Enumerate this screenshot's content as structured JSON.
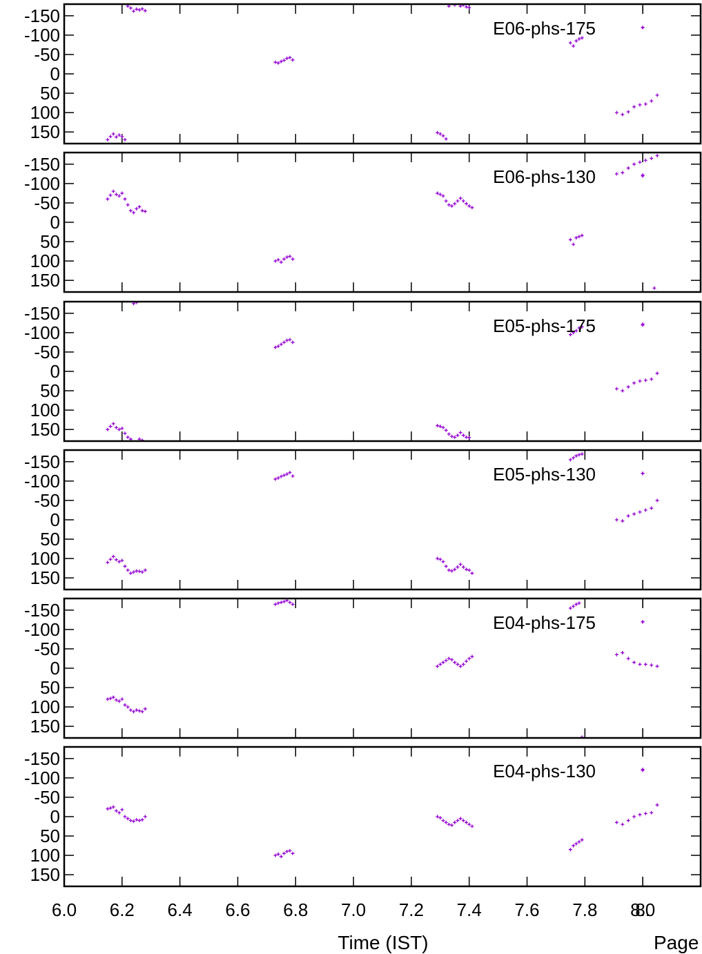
{
  "figure": {
    "xlabel": "Time (IST)",
    "footer": "Page",
    "series_color": "#9400d3",
    "x_ticks": [
      "6.0",
      "6.2",
      "6.4",
      "6.6",
      "6.8",
      "7.0",
      "7.2",
      "7.4",
      "7.6",
      "7.8",
      "8.0",
      "8."
    ],
    "y_ticks": [
      "-150",
      "-100",
      "-50",
      "0",
      "50",
      "100",
      "150"
    ]
  },
  "chart_data": [
    {
      "type": "scatter",
      "title": "E06-phs-175",
      "xlim": [
        6.0,
        8.2
      ],
      "ylim": [
        -180,
        180
      ],
      "y_inverted": true,
      "series": [
        {
          "name": "E06-phs-175",
          "x": [
            6.15,
            6.16,
            6.17,
            6.18,
            6.19,
            6.2,
            6.21,
            6.22,
            6.23,
            6.24,
            6.25,
            6.26,
            6.27,
            6.28,
            6.73,
            6.74,
            6.75,
            6.76,
            6.77,
            6.78,
            6.79,
            7.29,
            7.3,
            7.31,
            7.32,
            7.33,
            7.35,
            7.37,
            7.38,
            7.39,
            7.4,
            7.75,
            7.76,
            7.77,
            7.78,
            7.79,
            7.91,
            7.93,
            7.95,
            7.97,
            7.99,
            8.01,
            8.03,
            8.05,
            8.0
          ],
          "y": [
            170,
            162,
            155,
            163,
            158,
            162,
            170,
            -175,
            -170,
            -162,
            -167,
            -165,
            -168,
            -163,
            -30,
            -28,
            -32,
            -35,
            -40,
            -42,
            -36,
            152,
            155,
            160,
            168,
            -175,
            -178,
            -175,
            -178,
            -173,
            -171,
            -80,
            -72,
            -85,
            -90,
            -93,
            100,
            105,
            98,
            85,
            80,
            78,
            70,
            55,
            -120
          ]
        }
      ]
    },
    {
      "type": "scatter",
      "title": "E06-phs-130",
      "xlim": [
        6.0,
        8.2
      ],
      "ylim": [
        -180,
        180
      ],
      "y_inverted": true,
      "series": [
        {
          "name": "E06-phs-130",
          "x": [
            6.15,
            6.16,
            6.17,
            6.18,
            6.19,
            6.2,
            6.21,
            6.22,
            6.23,
            6.24,
            6.25,
            6.26,
            6.27,
            6.28,
            6.73,
            6.74,
            6.75,
            6.76,
            6.77,
            6.78,
            6.79,
            7.29,
            7.3,
            7.31,
            7.32,
            7.33,
            7.34,
            7.35,
            7.36,
            7.37,
            7.38,
            7.39,
            7.4,
            7.41,
            7.75,
            7.76,
            7.77,
            7.78,
            7.79,
            7.91,
            7.93,
            7.95,
            7.97,
            7.99,
            8.01,
            8.03,
            8.05,
            8.0,
            8.04
          ],
          "y": [
            -60,
            -70,
            -80,
            -72,
            -68,
            -75,
            -60,
            -45,
            -30,
            -25,
            -35,
            -40,
            -30,
            -28,
            100,
            97,
            103,
            95,
            90,
            88,
            95,
            -75,
            -72,
            -68,
            -55,
            -45,
            -42,
            -48,
            -55,
            -62,
            -55,
            -48,
            -42,
            -38,
            45,
            57,
            40,
            37,
            34,
            -125,
            -128,
            -140,
            -150,
            -155,
            -160,
            -165,
            -172,
            -122,
            170
          ]
        }
      ]
    },
    {
      "type": "scatter",
      "title": "E05-phs-175",
      "xlim": [
        6.0,
        8.2
      ],
      "ylim": [
        -180,
        180
      ],
      "y_inverted": true,
      "series": [
        {
          "name": "E05-phs-175",
          "x": [
            6.15,
            6.16,
            6.17,
            6.18,
            6.19,
            6.2,
            6.21,
            6.22,
            6.23,
            6.24,
            6.25,
            6.26,
            6.27,
            6.73,
            6.74,
            6.75,
            6.76,
            6.77,
            6.78,
            6.79,
            7.29,
            7.3,
            7.31,
            7.32,
            7.33,
            7.34,
            7.35,
            7.36,
            7.37,
            7.38,
            7.39,
            7.4,
            7.75,
            7.76,
            7.77,
            7.78,
            7.79,
            7.91,
            7.93,
            7.95,
            7.97,
            7.99,
            8.01,
            8.03,
            8.05,
            8.0
          ],
          "y": [
            150,
            142,
            135,
            145,
            150,
            147,
            160,
            170,
            175,
            -175,
            -178,
            175,
            178,
            -62,
            -65,
            -70,
            -75,
            -80,
            -82,
            -75,
            140,
            142,
            145,
            152,
            162,
            168,
            170,
            165,
            158,
            165,
            170,
            171,
            -95,
            -100,
            -105,
            -112,
            -115,
            45,
            50,
            40,
            30,
            25,
            23,
            20,
            5,
            -122
          ]
        }
      ]
    },
    {
      "type": "scatter",
      "title": "E05-phs-130",
      "xlim": [
        6.0,
        8.2
      ],
      "ylim": [
        -180,
        180
      ],
      "y_inverted": true,
      "series": [
        {
          "name": "E05-phs-130",
          "x": [
            6.15,
            6.16,
            6.17,
            6.18,
            6.19,
            6.2,
            6.21,
            6.22,
            6.23,
            6.24,
            6.25,
            6.26,
            6.27,
            6.28,
            6.73,
            6.74,
            6.75,
            6.76,
            6.77,
            6.78,
            6.79,
            7.29,
            7.3,
            7.31,
            7.32,
            7.33,
            7.34,
            7.35,
            7.36,
            7.37,
            7.38,
            7.39,
            7.4,
            7.41,
            7.75,
            7.76,
            7.77,
            7.78,
            7.79,
            7.91,
            7.93,
            7.95,
            7.97,
            7.99,
            8.01,
            8.03,
            8.05,
            8.0
          ],
          "y": [
            110,
            102,
            95,
            103,
            108,
            105,
            120,
            130,
            138,
            135,
            132,
            133,
            135,
            130,
            -105,
            -108,
            -112,
            -115,
            -118,
            -122,
            -113,
            100,
            102,
            108,
            120,
            130,
            132,
            128,
            122,
            115,
            122,
            128,
            130,
            138,
            -155,
            -160,
            -165,
            -168,
            -170,
            0,
            3,
            -10,
            -15,
            -20,
            -25,
            -30,
            -50,
            -120
          ]
        }
      ]
    },
    {
      "type": "scatter",
      "title": "E04-phs-175",
      "xlim": [
        6.0,
        8.2
      ],
      "ylim": [
        -180,
        180
      ],
      "y_inverted": true,
      "series": [
        {
          "name": "E04-phs-175",
          "x": [
            6.15,
            6.16,
            6.17,
            6.18,
            6.19,
            6.2,
            6.21,
            6.22,
            6.23,
            6.24,
            6.25,
            6.26,
            6.27,
            6.28,
            6.73,
            6.74,
            6.75,
            6.76,
            6.77,
            6.78,
            6.79,
            7.29,
            7.3,
            7.31,
            7.32,
            7.33,
            7.34,
            7.35,
            7.36,
            7.37,
            7.38,
            7.39,
            7.4,
            7.41,
            7.75,
            7.76,
            7.77,
            7.78,
            7.91,
            7.93,
            7.95,
            7.97,
            7.99,
            8.01,
            8.03,
            8.05,
            8.0,
            7.79
          ],
          "y": [
            80,
            78,
            75,
            82,
            85,
            80,
            95,
            100,
            108,
            112,
            108,
            110,
            112,
            105,
            -165,
            -168,
            -170,
            -172,
            -175,
            -170,
            -165,
            -5,
            -10,
            -15,
            -20,
            -25,
            -22,
            -15,
            -10,
            -5,
            -10,
            -18,
            -25,
            -30,
            -155,
            -160,
            -165,
            -168,
            -35,
            -40,
            -25,
            -15,
            -10,
            -10,
            -8,
            -5,
            -120,
            178
          ]
        }
      ]
    },
    {
      "type": "scatter",
      "title": "E04-phs-130",
      "xlim": [
        6.0,
        8.2
      ],
      "ylim": [
        -180,
        180
      ],
      "y_inverted": true,
      "series": [
        {
          "name": "E04-phs-130",
          "x": [
            6.15,
            6.16,
            6.17,
            6.18,
            6.19,
            6.2,
            6.21,
            6.22,
            6.23,
            6.24,
            6.25,
            6.26,
            6.27,
            6.28,
            6.73,
            6.74,
            6.75,
            6.76,
            6.77,
            6.78,
            6.79,
            7.29,
            7.3,
            7.31,
            7.32,
            7.33,
            7.34,
            7.35,
            7.36,
            7.37,
            7.38,
            7.39,
            7.4,
            7.41,
            7.75,
            7.76,
            7.77,
            7.78,
            7.79,
            7.91,
            7.93,
            7.95,
            7.97,
            7.99,
            8.01,
            8.03,
            8.05,
            8.0
          ],
          "y": [
            -20,
            -22,
            -25,
            -15,
            -10,
            -18,
            0,
            5,
            10,
            12,
            8,
            10,
            8,
            0,
            100,
            97,
            103,
            95,
            90,
            88,
            95,
            0,
            3,
            10,
            15,
            20,
            22,
            15,
            10,
            5,
            10,
            15,
            20,
            25,
            85,
            75,
            70,
            65,
            60,
            15,
            20,
            10,
            0,
            -5,
            -8,
            -10,
            -30,
            -122
          ]
        }
      ]
    }
  ]
}
